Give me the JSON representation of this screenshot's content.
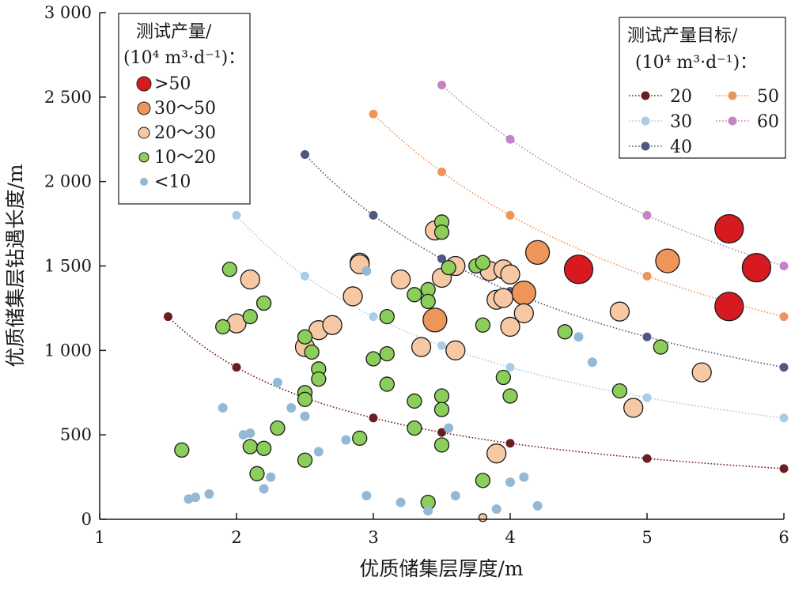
{
  "chart_data": {
    "type": "scatter",
    "xlabel": "优质储集层厚度/m",
    "ylabel": "优质储集层钻遇长度/m",
    "xlim": [
      1,
      6
    ],
    "ylim": [
      0,
      3000
    ],
    "x_ticks": [
      "1",
      "2",
      "3",
      "4",
      "5",
      "6"
    ],
    "y_ticks": [
      {
        "v": 0,
        "label": "0"
      },
      {
        "v": 500,
        "label": "500"
      },
      {
        "v": 1000,
        "label": "1 000"
      },
      {
        "v": 1500,
        "label": "1 500"
      },
      {
        "v": 2000,
        "label": "2 000"
      },
      {
        "v": 2500,
        "label": "2 500"
      },
      {
        "v": 3000,
        "label": "3 000"
      }
    ],
    "legend_left": {
      "placement": "top-left",
      "title_line1": "测试产量/",
      "title_line2": "(10⁴ m³·d⁻¹)：",
      "items": [
        {
          "key": "gt50",
          "label": ">50",
          "color": "#d71920",
          "size": 14
        },
        {
          "key": "30_50",
          "label": "30～50",
          "color": "#ee955a",
          "size": 12
        },
        {
          "key": "20_30",
          "label": "20～30",
          "color": "#f6c9a4",
          "size": 10
        },
        {
          "key": "10_20",
          "label": "10～20",
          "color": "#8cce5a",
          "size": 8
        },
        {
          "key": "lt10",
          "label": "<10",
          "color": "#93b9d6",
          "size": 6
        }
      ]
    },
    "legend_right": {
      "placement": "top-right",
      "title_line1": "测试产量目标/",
      "title_line2": "(10⁴ m³·d⁻¹)：",
      "items": [
        {
          "label": "20",
          "color": "#6b1d24"
        },
        {
          "label": "50",
          "color": "#ee955a"
        },
        {
          "label": "30",
          "color": "#a8cde4"
        },
        {
          "label": "60",
          "color": "#c483c4"
        },
        {
          "label": "40",
          "color": "#4f5880"
        }
      ]
    },
    "target_curves": [
      {
        "name": "20",
        "color": "#6b1d24",
        "product": 1800,
        "x_start": 1.5
      },
      {
        "name": "30",
        "color": "#a8cde4",
        "product": 3600,
        "x_start": 2.0
      },
      {
        "name": "40",
        "color": "#4f5880",
        "product": 5400,
        "x_start": 2.5
      },
      {
        "name": "50",
        "color": "#ee955a",
        "product": 7200,
        "x_start": 3.0
      },
      {
        "name": "60",
        "color": "#c483c4",
        "product": 9000,
        "x_start": 3.5
      }
    ],
    "curve_markers": [
      1.5,
      2,
      2.5,
      3,
      3.5,
      4,
      5,
      6
    ],
    "series": [
      {
        "key": "gt50",
        "radius": 18,
        "points": [
          [
            4.5,
            1480
          ],
          [
            5.6,
            1720
          ],
          [
            5.8,
            1490
          ],
          [
            5.6,
            1260
          ]
        ]
      },
      {
        "key": "30_50",
        "radius": 15,
        "points": [
          [
            3.45,
            1180
          ],
          [
            4.1,
            1340
          ],
          [
            4.2,
            1580
          ],
          [
            5.15,
            1530
          ]
        ]
      },
      {
        "key": "20_30",
        "radius": 12,
        "points": [
          [
            2.0,
            1160
          ],
          [
            2.1,
            1420
          ],
          [
            2.5,
            1020
          ],
          [
            2.6,
            1120
          ],
          [
            2.7,
            1150
          ],
          [
            2.85,
            1320
          ],
          [
            2.9,
            1520
          ],
          [
            2.9,
            1510
          ],
          [
            3.2,
            1420
          ],
          [
            3.35,
            1020
          ],
          [
            3.45,
            1710
          ],
          [
            3.5,
            1430
          ],
          [
            3.6,
            1500
          ],
          [
            3.6,
            1000
          ],
          [
            3.85,
            1470
          ],
          [
            3.9,
            1300
          ],
          [
            3.95,
            1480
          ],
          [
            3.95,
            1310
          ],
          [
            4.0,
            1450
          ],
          [
            4.0,
            1140
          ],
          [
            4.1,
            1220
          ],
          [
            4.8,
            1230
          ],
          [
            4.9,
            660
          ],
          [
            5.4,
            870
          ],
          [
            3.9,
            390
          ]
        ]
      },
      {
        "key": "10_20",
        "radius": 9,
        "points": [
          [
            1.6,
            410
          ],
          [
            1.9,
            1140
          ],
          [
            1.95,
            1480
          ],
          [
            2.1,
            1200
          ],
          [
            2.1,
            430
          ],
          [
            2.2,
            1280
          ],
          [
            2.2,
            420
          ],
          [
            2.15,
            270
          ],
          [
            2.3,
            540
          ],
          [
            2.5,
            1080
          ],
          [
            2.5,
            750
          ],
          [
            2.5,
            710
          ],
          [
            2.5,
            350
          ],
          [
            2.55,
            990
          ],
          [
            2.6,
            890
          ],
          [
            2.6,
            830
          ],
          [
            2.9,
            480
          ],
          [
            3.0,
            950
          ],
          [
            3.1,
            1200
          ],
          [
            3.1,
            980
          ],
          [
            3.1,
            800
          ],
          [
            3.3,
            1330
          ],
          [
            3.3,
            700
          ],
          [
            3.3,
            540
          ],
          [
            3.4,
            1360
          ],
          [
            3.4,
            1290
          ],
          [
            3.4,
            100
          ],
          [
            3.5,
            1760
          ],
          [
            3.5,
            1700
          ],
          [
            3.5,
            730
          ],
          [
            3.5,
            650
          ],
          [
            3.5,
            440
          ],
          [
            3.55,
            1490
          ],
          [
            3.75,
            1500
          ],
          [
            3.8,
            1520
          ],
          [
            3.8,
            1150
          ],
          [
            3.8,
            230
          ],
          [
            3.95,
            840
          ],
          [
            4.0,
            730
          ],
          [
            4.4,
            1110
          ],
          [
            4.8,
            760
          ],
          [
            5.1,
            1020
          ]
        ]
      },
      {
        "key": "lt10",
        "radius": 6,
        "points": [
          [
            1.65,
            120
          ],
          [
            1.7,
            130
          ],
          [
            1.8,
            150
          ],
          [
            1.9,
            660
          ],
          [
            2.05,
            500
          ],
          [
            2.1,
            510
          ],
          [
            2.2,
            180
          ],
          [
            2.25,
            250
          ],
          [
            2.3,
            810
          ],
          [
            2.4,
            660
          ],
          [
            2.5,
            610
          ],
          [
            2.6,
            400
          ],
          [
            2.8,
            470
          ],
          [
            2.95,
            1470
          ],
          [
            2.95,
            140
          ],
          [
            3.2,
            100
          ],
          [
            3.4,
            50
          ],
          [
            3.55,
            540
          ],
          [
            3.6,
            140
          ],
          [
            3.9,
            60
          ],
          [
            4.0,
            220
          ],
          [
            4.1,
            250
          ],
          [
            4.2,
            80
          ],
          [
            4.5,
            1080
          ],
          [
            4.6,
            930
          ]
        ]
      },
      {
        "key": "20_30_small",
        "radius": 5,
        "color_key": "20_30",
        "points": [
          [
            3.8,
            10
          ]
        ]
      }
    ]
  }
}
